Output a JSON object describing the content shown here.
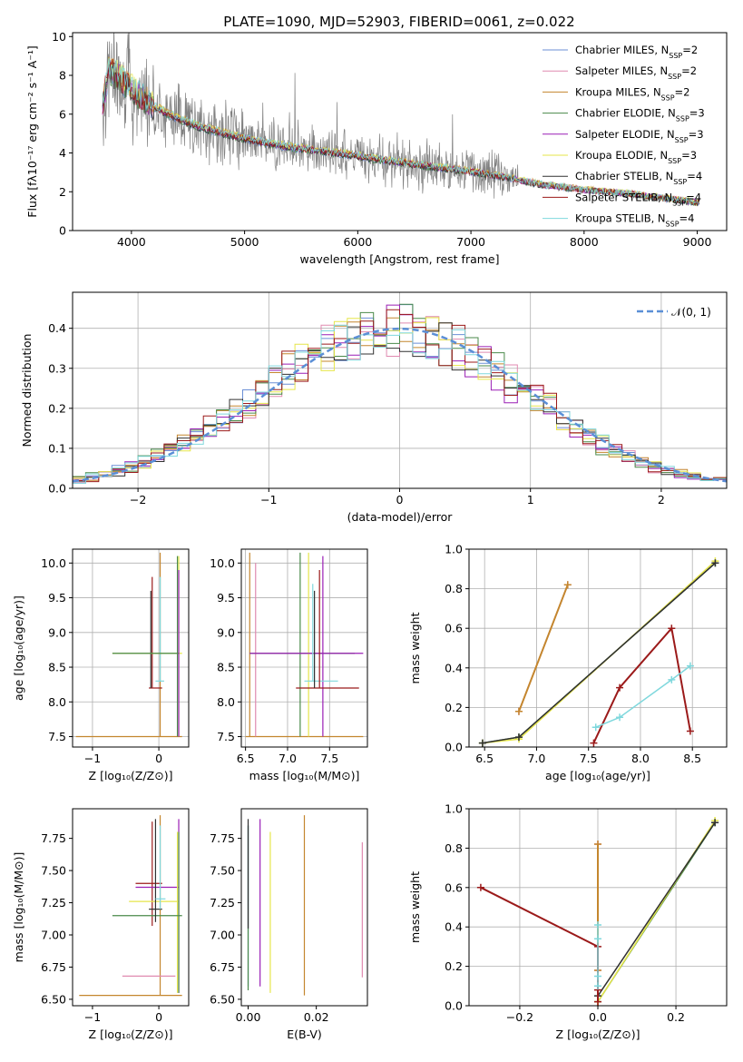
{
  "figure": {
    "title": "PLATE=1090, MJD=52903, FIBERID=0061, z=0.022"
  },
  "colors": {
    "grid": "#b0b0b0",
    "data": "#808080",
    "gauss": "#5b8fd6"
  },
  "models": [
    {
      "name": "Chabrier MILES",
      "nssp": "2",
      "color": "#6b8fd6"
    },
    {
      "name": "Salpeter MILES",
      "nssp": "2",
      "color": "#e08ab0"
    },
    {
      "name": "Kroupa MILES",
      "nssp": "2",
      "color": "#c4862e"
    },
    {
      "name": "Chabrier ELODIE",
      "nssp": "3",
      "color": "#4a8a4a"
    },
    {
      "name": "Salpeter ELODIE",
      "nssp": "3",
      "color": "#9a1fb5"
    },
    {
      "name": "Kroupa ELODIE",
      "nssp": "3",
      "color": "#e6e64a"
    },
    {
      "name": "Chabrier STELIB",
      "nssp": "4",
      "color": "#303030"
    },
    {
      "name": "Salpeter STELIB",
      "nssp": "4",
      "color": "#9b1a1a"
    },
    {
      "name": "Kroupa STELIB",
      "nssp": "4",
      "color": "#7fd8dd"
    }
  ],
  "chart_data": [
    {
      "id": "spectrum",
      "type": "line",
      "xlabel": "wavelength [Angstrom, rest frame]",
      "ylabel": "Flux [fλ10⁻¹⁷ erg cm⁻² s⁻¹ A⁻¹]",
      "xlim": [
        3480,
        9260
      ],
      "ylim": [
        0,
        10.2
      ],
      "xticks": [
        4000,
        5000,
        6000,
        7000,
        8000,
        9000
      ],
      "yticks": [
        0,
        2,
        4,
        6,
        8,
        10
      ],
      "grid": false,
      "legend": "right",
      "model_x": [
        3740,
        3800,
        3900,
        4000,
        4200,
        4400,
        4600,
        4800,
        5000,
        5200,
        5400,
        5600,
        5800,
        6000,
        6200,
        6400,
        6600,
        6800,
        7000,
        7200,
        7400,
        7600,
        7800,
        8000,
        8200,
        8400,
        8600,
        8800,
        9000
      ],
      "model_y": [
        6.3,
        8.3,
        7.9,
        7.3,
        6.4,
        5.8,
        5.35,
        5.05,
        4.75,
        4.5,
        4.3,
        4.15,
        4.0,
        3.85,
        3.65,
        3.5,
        3.35,
        3.2,
        3.05,
        2.85,
        2.65,
        2.4,
        2.25,
        2.1,
        2.0,
        1.9,
        1.75,
        1.6,
        1.45
      ]
    },
    {
      "id": "residuals",
      "type": "bar",
      "xlabel": "(data-model)/error",
      "ylabel": "Normed distribution",
      "xlim": [
        -2.5,
        2.5
      ],
      "ylim": [
        0,
        0.49
      ],
      "xticks": [
        -2,
        -1,
        0,
        1,
        2
      ],
      "yticks": [
        0.0,
        0.1,
        0.2,
        0.3,
        0.4
      ],
      "grid": true,
      "legend_label": "𝒩(0, 1)",
      "legend": "top-right"
    },
    {
      "id": "z-age",
      "type": "scatter",
      "xlabel": "Z [log₁₀(Z/Z⊙)]",
      "ylabel": "age  [log₁₀(age/yr)]",
      "xlim": [
        -1.3,
        0.45
      ],
      "ylim": [
        7.35,
        10.2
      ],
      "xticks": [
        -1,
        0
      ],
      "yticks": [
        7.5,
        8.0,
        8.5,
        9.0,
        9.5,
        10.0
      ],
      "grid": true
    },
    {
      "id": "mass-age",
      "type": "scatter",
      "xlabel": "mass [log₁₀(M/M⊙)]",
      "xlim": [
        6.45,
        7.95
      ],
      "ylim": [
        7.35,
        10.2
      ],
      "xticks": [
        6.5,
        7.0,
        7.5
      ],
      "yticks": [
        7.5,
        8.0,
        8.5,
        9.0,
        9.5,
        10.0
      ],
      "grid": true
    },
    {
      "id": "age-weight",
      "type": "line",
      "xlabel": "age  [log₁₀(age/yr)]",
      "ylabel": "mass weight",
      "xlim": [
        6.35,
        8.83
      ],
      "ylim": [
        0,
        1
      ],
      "xticks": [
        6.5,
        7.0,
        7.5,
        8.0,
        8.5
      ],
      "yticks": [
        0.0,
        0.2,
        0.4,
        0.6,
        0.8,
        1.0
      ],
      "grid": true,
      "series": [
        {
          "model": 1,
          "x": [
            6.83,
            7.3
          ],
          "y": [
            0.18,
            0.82
          ]
        },
        {
          "model": 2,
          "x": [
            6.83,
            7.3
          ],
          "y": [
            0.18,
            0.82
          ]
        },
        {
          "model": 3,
          "x": [
            6.48,
            6.83,
            8.72
          ],
          "y": [
            0.02,
            0.05,
            0.93
          ]
        },
        {
          "model": 5,
          "x": [
            6.48,
            6.83,
            8.72
          ],
          "y": [
            0.02,
            0.04,
            0.94
          ]
        },
        {
          "model": 6,
          "x": [
            6.48,
            6.83,
            8.72
          ],
          "y": [
            0.02,
            0.05,
            0.93
          ]
        },
        {
          "model": 7,
          "x": [
            7.55,
            7.8,
            8.3,
            8.48
          ],
          "y": [
            0.02,
            0.3,
            0.6,
            0.08
          ]
        },
        {
          "model": 8,
          "x": [
            7.57,
            7.8,
            8.3,
            8.48
          ],
          "y": [
            0.1,
            0.15,
            0.34,
            0.41
          ]
        }
      ]
    },
    {
      "id": "z-mass",
      "type": "scatter",
      "xlabel": "Z [log₁₀(Z/Z⊙)]",
      "ylabel": "mass [log₁₀(M/M⊙)]",
      "xlim": [
        -1.3,
        0.45
      ],
      "ylim": [
        6.45,
        7.98
      ],
      "xticks": [
        -1,
        0
      ],
      "yticks": [
        6.5,
        6.75,
        7.0,
        7.25,
        7.5,
        7.75
      ],
      "grid": false
    },
    {
      "id": "ebv-mass",
      "type": "scatter",
      "xlabel": "E(B-V)",
      "xlim": [
        -0.002,
        0.035
      ],
      "ylim": [
        6.45,
        7.98
      ],
      "xticks": [
        0.0,
        0.02
      ],
      "yticks": [
        6.5,
        6.75,
        7.0,
        7.25,
        7.5,
        7.75
      ],
      "grid": false
    },
    {
      "id": "z-weight",
      "type": "line",
      "xlabel": "Z [log₁₀(Z/Z⊙)]",
      "ylabel": "mass weight",
      "xlim": [
        -0.33,
        0.33
      ],
      "ylim": [
        0,
        1
      ],
      "xticks": [
        -0.2,
        0.0,
        0.2
      ],
      "yticks": [
        0.0,
        0.2,
        0.4,
        0.6,
        0.8,
        1.0
      ],
      "grid": true,
      "series": [
        {
          "model": 1,
          "x": [
            0,
            0
          ],
          "y": [
            0.18,
            0.82
          ]
        },
        {
          "model": 2,
          "x": [
            0,
            0
          ],
          "y": [
            0.18,
            0.82
          ]
        },
        {
          "model": 3,
          "x": [
            0,
            0.3
          ],
          "y": [
            0.02,
            0.93
          ]
        },
        {
          "model": 5,
          "x": [
            0,
            0.3
          ],
          "y": [
            0.02,
            0.94
          ]
        },
        {
          "model": 6,
          "x": [
            0,
            0.3
          ],
          "y": [
            0.05,
            0.93
          ]
        },
        {
          "model": 7,
          "x": [
            -0.3,
            0,
            0,
            0
          ],
          "y": [
            0.6,
            0.3,
            0.08,
            0.02
          ]
        },
        {
          "model": 8,
          "x": [
            0,
            0,
            0,
            0
          ],
          "y": [
            0.1,
            0.15,
            0.34,
            0.41
          ]
        }
      ]
    }
  ]
}
